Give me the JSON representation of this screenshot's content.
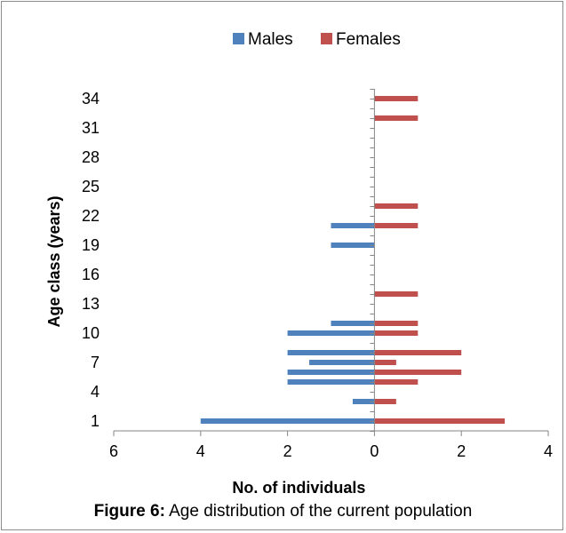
{
  "chart_data": {
    "type": "bar",
    "orientation": "horizontal",
    "layout": "population-pyramid",
    "ylabel": "Age class (years)",
    "xlabel": "No. of individuals",
    "y_ticks": [
      "1",
      "4",
      "7",
      "10",
      "13",
      "16",
      "19",
      "22",
      "25",
      "28",
      "31",
      "34"
    ],
    "x_tick_labels": [
      "6",
      "4",
      "2",
      "0",
      "2",
      "4"
    ],
    "xlim": [
      -6,
      4
    ],
    "ylim": [
      0,
      35
    ],
    "grid": false,
    "legend_position": "top",
    "series": [
      {
        "name": "Males",
        "color": "#4f81bd",
        "points": [
          {
            "age": 1,
            "value": 4
          },
          {
            "age": 3,
            "value": 0.5
          },
          {
            "age": 5,
            "value": 2
          },
          {
            "age": 6,
            "value": 2
          },
          {
            "age": 7,
            "value": 1.5
          },
          {
            "age": 8,
            "value": 2
          },
          {
            "age": 10,
            "value": 2
          },
          {
            "age": 11,
            "value": 1
          },
          {
            "age": 19,
            "value": 1
          },
          {
            "age": 21,
            "value": 1
          }
        ]
      },
      {
        "name": "Females",
        "color": "#c0504d",
        "points": [
          {
            "age": 1,
            "value": 3
          },
          {
            "age": 3,
            "value": 0.5
          },
          {
            "age": 5,
            "value": 1
          },
          {
            "age": 6,
            "value": 2
          },
          {
            "age": 7,
            "value": 0.5
          },
          {
            "age": 8,
            "value": 2
          },
          {
            "age": 10,
            "value": 1
          },
          {
            "age": 11,
            "value": 1
          },
          {
            "age": 14,
            "value": 1
          },
          {
            "age": 21,
            "value": 1
          },
          {
            "age": 23,
            "value": 1
          },
          {
            "age": 32,
            "value": 1
          },
          {
            "age": 34,
            "value": 1
          }
        ]
      }
    ]
  },
  "caption": {
    "label": "Figure 6:",
    "text": " Age distribution of the current population"
  }
}
